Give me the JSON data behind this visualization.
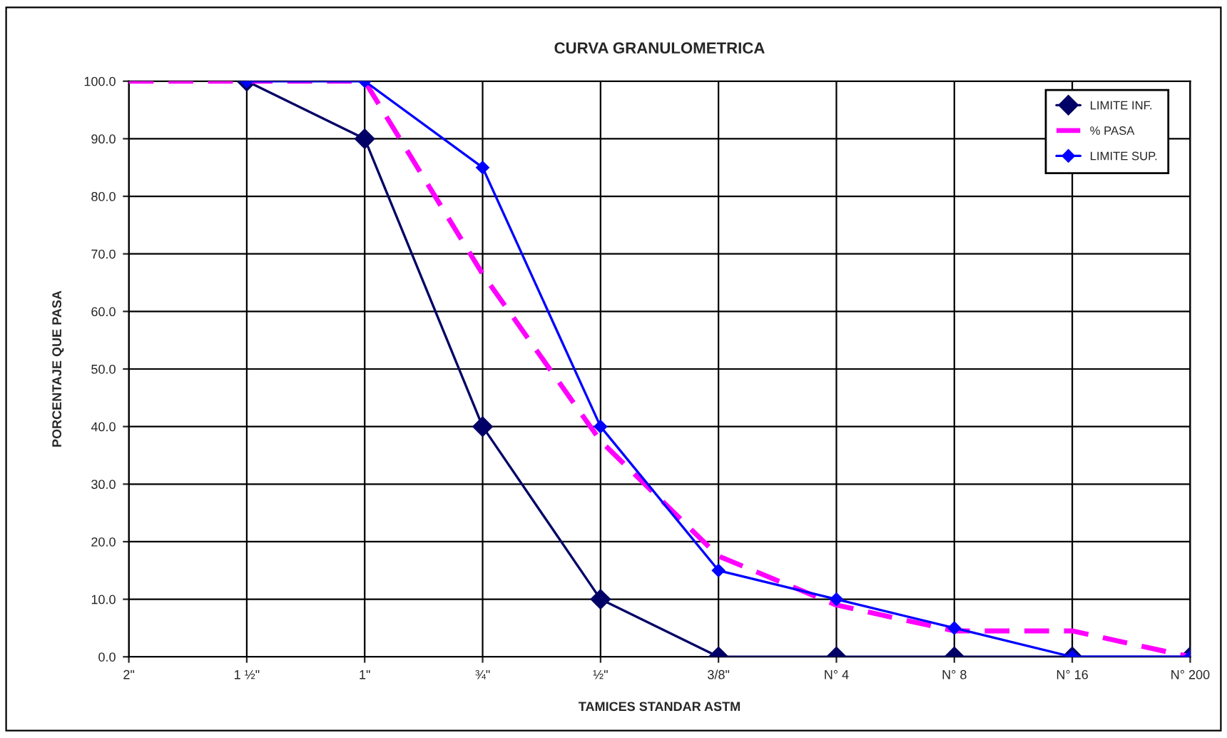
{
  "chart_data": {
    "type": "line",
    "title": "CURVA GRANULOMETRICA",
    "xlabel": "TAMICES STANDAR ASTM",
    "ylabel": "PORCENTAJE QUE PASA",
    "categories": [
      "2\"",
      "1 ½\"",
      "1\"",
      "¾\"",
      "½\"",
      "3/8\"",
      "N° 4",
      "N° 8",
      "N° 16",
      "N° 200"
    ],
    "series": [
      {
        "name": "LIMITE INF.",
        "color": "#000066",
        "marker": "diamond",
        "line_style": "solid",
        "values": [
          null,
          100,
          90,
          40,
          10,
          0,
          0,
          0,
          0,
          0
        ]
      },
      {
        "name": "% PASA",
        "color": "#ff00ff",
        "marker": "none",
        "line_style": "dashed",
        "values": [
          100,
          100,
          100,
          66.5,
          37.5,
          17.5,
          9,
          4.5,
          4.5,
          0
        ]
      },
      {
        "name": "LIMITE SUP.",
        "color": "#0000ff",
        "marker": "diamond",
        "line_style": "solid",
        "values": [
          null,
          100,
          100,
          85,
          40,
          15,
          10,
          5,
          0,
          0
        ]
      }
    ],
    "ylim": [
      0,
      100
    ],
    "yticks": [
      {
        "value": 0,
        "label": "0.0"
      },
      {
        "value": 10,
        "label": "10.0"
      },
      {
        "value": 20,
        "label": "20.0"
      },
      {
        "value": 30,
        "label": "30.0"
      },
      {
        "value": 40,
        "label": "40.0"
      },
      {
        "value": 50,
        "label": "50.0"
      },
      {
        "value": 60,
        "label": "60.0"
      },
      {
        "value": 70,
        "label": "70.0"
      },
      {
        "value": 80,
        "label": "80.0"
      },
      {
        "value": 90,
        "label": "90.0"
      },
      {
        "value": 100,
        "label": "100.0"
      }
    ],
    "grid": true,
    "legend": "top right"
  }
}
